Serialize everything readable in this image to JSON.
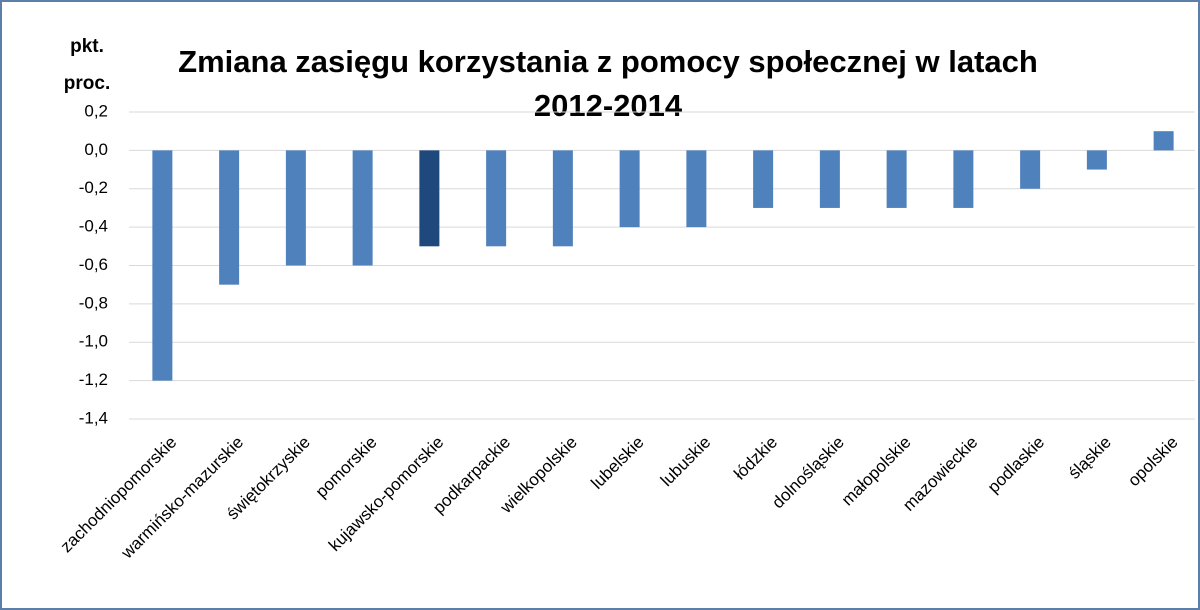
{
  "chart_data": {
    "type": "bar",
    "title": "Zmiana zasięgu korzystania z pomocy społecznej w latach 2012-2014",
    "ylabel": [
      "pkt.",
      "proc."
    ],
    "categories": [
      "zachodniopomorskie",
      "warmińsko-mazurskie",
      "świętokrzyskie",
      "pomorskie",
      "kujawsko-pomorskie",
      "podkarpackie",
      "wielkopolskie",
      "lubelskie",
      "lubuskie",
      "łódzkie",
      "dolnośląskie",
      "małopolskie",
      "mazowieckie",
      "podlaskie",
      "śląskie",
      "opolskie"
    ],
    "values": [
      -1.2,
      -0.7,
      -0.6,
      -0.6,
      -0.5,
      -0.5,
      -0.5,
      -0.4,
      -0.4,
      -0.3,
      -0.3,
      -0.3,
      -0.3,
      -0.2,
      -0.1,
      0.1
    ],
    "colors": [
      "#4f81bd",
      "#4f81bd",
      "#4f81bd",
      "#4f81bd",
      "#1f497d",
      "#4f81bd",
      "#4f81bd",
      "#4f81bd",
      "#4f81bd",
      "#4f81bd",
      "#4f81bd",
      "#4f81bd",
      "#4f81bd",
      "#4f81bd",
      "#4f81bd",
      "#4f81bd"
    ],
    "ylim": [
      -1.4,
      0.2
    ],
    "yticks": [
      {
        "value": 0.2,
        "label": "0,2"
      },
      {
        "value": 0,
        "label": "0,0"
      },
      {
        "value": -0.2,
        "label": "-0,2"
      },
      {
        "value": -0.4,
        "label": "-0,4"
      },
      {
        "value": -0.6,
        "label": "-0,6"
      },
      {
        "value": -0.8,
        "label": "-0,8"
      },
      {
        "value": -1.0,
        "label": "-1,0"
      },
      {
        "value": -1.2,
        "label": "-1,2"
      },
      {
        "value": -1.4,
        "label": "-1,4"
      }
    ],
    "grid": true
  }
}
